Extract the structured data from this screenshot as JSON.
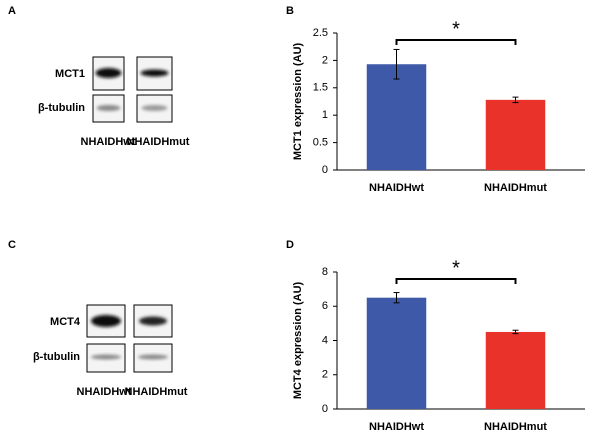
{
  "panels": [
    {
      "letter": "A",
      "protein": "MCT1",
      "loading": "β-tubulin",
      "lanes": [
        "NHAIDHwt",
        "NHAIDHmut"
      ]
    },
    {
      "letter": "C",
      "protein": "MCT4",
      "loading": "β-tubulin",
      "lanes": [
        "NHAIDHwt",
        "NHAIDHmut"
      ]
    }
  ],
  "chart_data": [
    {
      "type": "bar",
      "panel": "B",
      "ylabel": "MCT1 expression (AU)",
      "categories": [
        "NHAIDHwt",
        "NHAIDHmut"
      ],
      "values": [
        1.93,
        1.28
      ],
      "errors": [
        0.27,
        0.05
      ],
      "colors": [
        "#3d59a8",
        "#e8322a"
      ],
      "ylim": [
        0,
        2.5
      ],
      "yticks": [
        0,
        0.5,
        1,
        1.5,
        2,
        2.5
      ],
      "annotation": "*"
    },
    {
      "type": "bar",
      "panel": "D",
      "ylabel": "MCT4 expression (AU)",
      "categories": [
        "NHAIDHwt",
        "NHAIDHmut"
      ],
      "values": [
        6.5,
        4.5
      ],
      "errors": [
        0.3,
        0.1
      ],
      "colors": [
        "#3d59a8",
        "#e8322a"
      ],
      "ylim": [
        0,
        8
      ],
      "yticks": [
        0,
        2,
        4,
        6,
        8
      ],
      "annotation": "*"
    }
  ]
}
